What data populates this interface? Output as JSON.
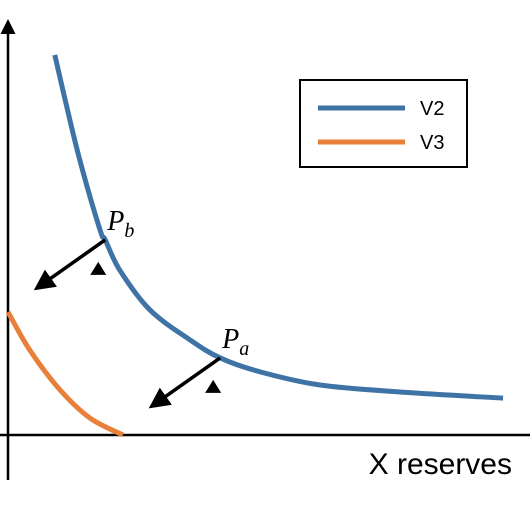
{
  "chart_data": {
    "type": "line",
    "x_label": "X reserves",
    "xlim": [
      0,
      100
    ],
    "ylim": [
      0,
      100
    ],
    "legend": "upper right",
    "series": [
      {
        "name": "V2",
        "color": "#3f73a6",
        "x": [
          9.0,
          11.0,
          13.8,
          17.7,
          18.7,
          21.5,
          27.3,
          35.0,
          40.8,
          48.5,
          60.0,
          75.4,
          95.2
        ],
        "values": [
          92.7,
          81.7,
          67.1,
          50.0,
          47.6,
          40.2,
          30.5,
          23.2,
          18.8,
          15.4,
          12.2,
          10.5,
          9.0
        ]
      },
      {
        "name": "V3",
        "color": "#e8803a",
        "x": [
          0,
          4.2,
          10.0,
          15.8,
          22.1
        ],
        "values": [
          30.0,
          20.7,
          11.0,
          4.1,
          0
        ]
      }
    ],
    "points": [
      {
        "label": "P",
        "sub": "b",
        "x": 18.7,
        "y": 47.6
      },
      {
        "label": "P",
        "sub": "a",
        "x": 40.8,
        "y": 18.8
      }
    ]
  }
}
